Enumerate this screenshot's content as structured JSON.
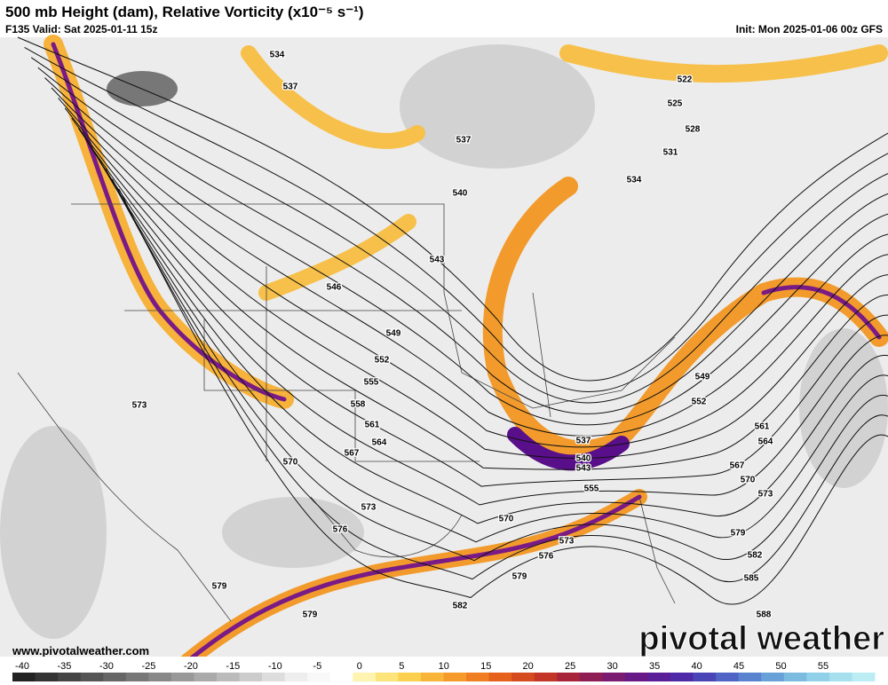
{
  "header": {
    "title": "500 mb Height (dam), Relative Vorticity (x10⁻⁵ s⁻¹)",
    "valid": "F135 Valid: Sat 2025-01-11 15z",
    "init": "Init: Mon 2025-01-06 00z GFS"
  },
  "contour_labels": [
    534,
    537,
    537,
    540,
    543,
    546,
    549,
    552,
    555,
    558,
    561,
    564,
    567,
    570,
    573,
    573,
    576,
    579,
    579,
    579,
    570,
    573,
    576,
    582,
    522,
    525,
    528,
    531,
    534,
    537,
    540,
    543,
    555,
    549,
    552,
    561,
    564,
    567,
    570,
    573,
    579,
    582,
    585,
    588
  ],
  "footer": {
    "website": "www.pivotalweather.com",
    "watermark": "pivotal weather"
  },
  "colorbar": {
    "ticks": [
      -40,
      -35,
      -30,
      -25,
      -20,
      -15,
      -10,
      -5,
      0,
      5,
      10,
      15,
      20,
      25,
      30,
      35,
      40,
      45,
      50,
      55
    ]
  }
}
